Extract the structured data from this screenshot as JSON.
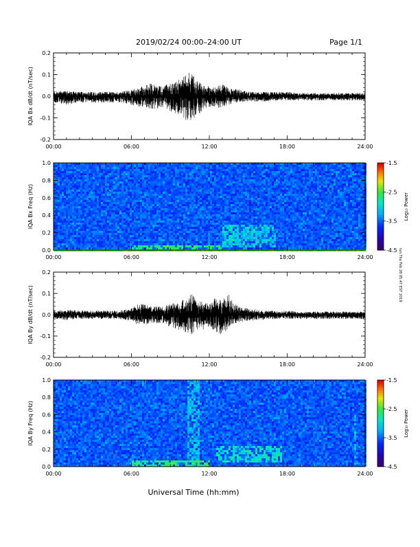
{
  "header": {
    "title": "2019/02/24  00:00–24:00 UT",
    "page": "Page 1/1"
  },
  "footer": {
    "xlabel": "Universal Time (hh:mm)"
  },
  "side_note": "run Thu Feb 28 05:47 EST 2019",
  "chart_data": [
    {
      "type": "line",
      "title": "",
      "ylabel": "IQA Bx dB/dt (nT/sec)",
      "xlabel": "",
      "x_ticks": [
        "00:00",
        "06:00",
        "12:00",
        "18:00",
        "24:00"
      ],
      "xlim": [
        0,
        24
      ],
      "ylim": [
        -0.2,
        0.2
      ],
      "y_ticks": [
        "-0.2",
        "-0.1",
        "0.0",
        "0.1",
        "0.2"
      ],
      "grid": false,
      "series": [
        {
          "x": [
            0,
            1,
            2,
            3,
            4,
            5,
            6,
            6.5,
            7,
            7.5,
            8,
            8.5,
            9,
            9.5,
            10,
            10.5,
            11,
            11.5,
            12,
            12.5,
            13,
            13.5,
            14,
            15,
            16,
            17,
            18,
            19,
            20,
            21,
            22,
            23,
            24
          ],
          "ymax": [
            0.02,
            0.03,
            0.02,
            0.02,
            0.02,
            0.02,
            0.03,
            0.04,
            0.05,
            0.06,
            0.05,
            0.05,
            0.06,
            0.07,
            0.09,
            0.12,
            0.08,
            0.05,
            0.05,
            0.04,
            0.06,
            0.04,
            0.04,
            0.02,
            0.02,
            0.02,
            0.02,
            0.015,
            0.015,
            0.015,
            0.015,
            0.015,
            0.015
          ],
          "ymin": [
            -0.03,
            -0.04,
            -0.03,
            -0.03,
            -0.03,
            -0.03,
            -0.04,
            -0.05,
            -0.05,
            -0.06,
            -0.06,
            -0.05,
            -0.07,
            -0.08,
            -0.1,
            -0.13,
            -0.09,
            -0.07,
            -0.05,
            -0.05,
            -0.06,
            -0.04,
            -0.03,
            -0.025,
            -0.025,
            -0.02,
            -0.02,
            -0.02,
            -0.02,
            -0.02,
            -0.02,
            -0.02,
            -0.02
          ]
        }
      ]
    },
    {
      "type": "heatmap",
      "title": "",
      "ylabel": "IQA Bx Freq (Hz)",
      "xlabel": "",
      "x_ticks": [
        "00:00",
        "06:00",
        "12:00",
        "18:00",
        "24:00"
      ],
      "xlim": [
        0,
        24
      ],
      "ylim": [
        0.0,
        1.0
      ],
      "y_ticks": [
        "0.0",
        "0.2",
        "0.4",
        "0.6",
        "0.8",
        "1.0"
      ],
      "colorbar": {
        "label": "Log₁₀ Power",
        "ticks": [
          "-1.5",
          "-2.5",
          "-3.5",
          "-4.5"
        ],
        "range": [
          -4.5,
          -1.5
        ]
      },
      "background_level": -3.5,
      "features": [
        {
          "x": [
            13,
            17
          ],
          "y": [
            0.05,
            0.3
          ],
          "level": -3.0
        },
        {
          "x": [
            6,
            13
          ],
          "y": [
            0.0,
            0.06
          ],
          "level": -2.6
        }
      ]
    },
    {
      "type": "line",
      "title": "",
      "ylabel": "IQA By dB/dt (nT/sec)",
      "xlabel": "",
      "x_ticks": [
        "00:00",
        "06:00",
        "12:00",
        "18:00",
        "24:00"
      ],
      "xlim": [
        0,
        24
      ],
      "ylim": [
        -0.2,
        0.2
      ],
      "y_ticks": [
        "-0.2",
        "-0.1",
        "0.0",
        "0.1",
        "0.2"
      ],
      "grid": false,
      "series": [
        {
          "x": [
            0,
            1,
            2,
            3,
            4,
            5,
            6,
            6.5,
            7,
            7.5,
            8,
            8.5,
            9,
            9.5,
            10,
            10.5,
            11,
            11.5,
            12,
            12.5,
            13,
            13.5,
            14,
            15,
            16,
            17,
            18,
            19,
            20,
            21,
            22,
            23,
            24
          ],
          "ymax": [
            0.02,
            0.025,
            0.02,
            0.02,
            0.02,
            0.02,
            0.03,
            0.05,
            0.05,
            0.04,
            0.04,
            0.04,
            0.05,
            0.06,
            0.07,
            0.11,
            0.07,
            0.06,
            0.06,
            0.08,
            0.07,
            0.1,
            0.05,
            0.03,
            0.02,
            0.02,
            0.02,
            0.015,
            0.015,
            0.015,
            0.015,
            0.015,
            0.015
          ],
          "ymin": [
            -0.02,
            -0.025,
            -0.02,
            -0.02,
            -0.02,
            -0.02,
            -0.03,
            -0.05,
            -0.05,
            -0.04,
            -0.04,
            -0.04,
            -0.06,
            -0.07,
            -0.08,
            -0.1,
            -0.07,
            -0.07,
            -0.06,
            -0.08,
            -0.1,
            -0.06,
            -0.04,
            -0.03,
            -0.025,
            -0.02,
            -0.02,
            -0.02,
            -0.02,
            -0.02,
            -0.02,
            -0.02,
            -0.02
          ]
        }
      ]
    },
    {
      "type": "heatmap",
      "title": "",
      "ylabel": "IQA By Freq (Hz)",
      "xlabel": "",
      "x_ticks": [
        "00:00",
        "06:00",
        "12:00",
        "18:00",
        "24:00"
      ],
      "xlim": [
        0,
        24
      ],
      "ylim": [
        0.0,
        1.0
      ],
      "y_ticks": [
        "0.0",
        "0.2",
        "0.4",
        "0.6",
        "0.8",
        "1.0"
      ],
      "colorbar": {
        "label": "Log₁₀ Power",
        "ticks": [
          "-1.5",
          "-2.5",
          "-3.5",
          "-4.5"
        ],
        "range": [
          -4.5,
          -1.5
        ]
      },
      "background_level": -3.5,
      "features": [
        {
          "x": [
            10.2,
            11.2
          ],
          "y": [
            0.0,
            1.0
          ],
          "level": -3.1
        },
        {
          "x": [
            12.5,
            17.5
          ],
          "y": [
            0.05,
            0.25
          ],
          "level": -2.9
        },
        {
          "x": [
            6,
            12
          ],
          "y": [
            0.0,
            0.08
          ],
          "level": -2.6
        },
        {
          "x": [
            23,
            23.2
          ],
          "y": [
            0.0,
            0.6
          ],
          "level": -3.1
        }
      ]
    }
  ]
}
